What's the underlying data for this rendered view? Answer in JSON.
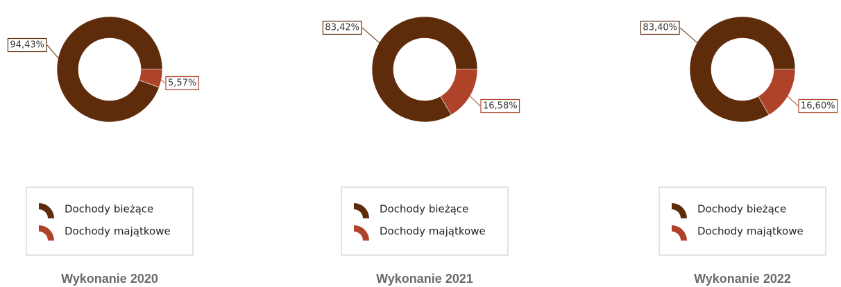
{
  "chart_data": [
    {
      "type": "pie",
      "title": "Wykonanie 2020",
      "categories": [
        "Dochody bieżące",
        "Dochody majątkowe"
      ],
      "values": [
        94.43,
        5.57
      ],
      "value_labels": [
        "94,43%",
        "5,57%"
      ],
      "colors": [
        "#5e2b0b",
        "#ae432a"
      ],
      "donut": true,
      "legend": "bottom"
    },
    {
      "type": "pie",
      "title": "Wykonanie 2021",
      "categories": [
        "Dochody bieżące",
        "Dochody majątkowe"
      ],
      "values": [
        83.42,
        16.58
      ],
      "value_labels": [
        "83,42%",
        "16,58%"
      ],
      "colors": [
        "#5e2b0b",
        "#ae432a"
      ],
      "donut": true,
      "legend": "bottom"
    },
    {
      "type": "pie",
      "title": "Wykonanie 2022",
      "categories": [
        "Dochody bieżące",
        "Dochody majątkowe"
      ],
      "values": [
        83.4,
        16.6
      ],
      "value_labels": [
        "83,40%",
        "16,60%"
      ],
      "colors": [
        "#5e2b0b",
        "#ae432a"
      ],
      "donut": true,
      "legend": "bottom"
    }
  ]
}
